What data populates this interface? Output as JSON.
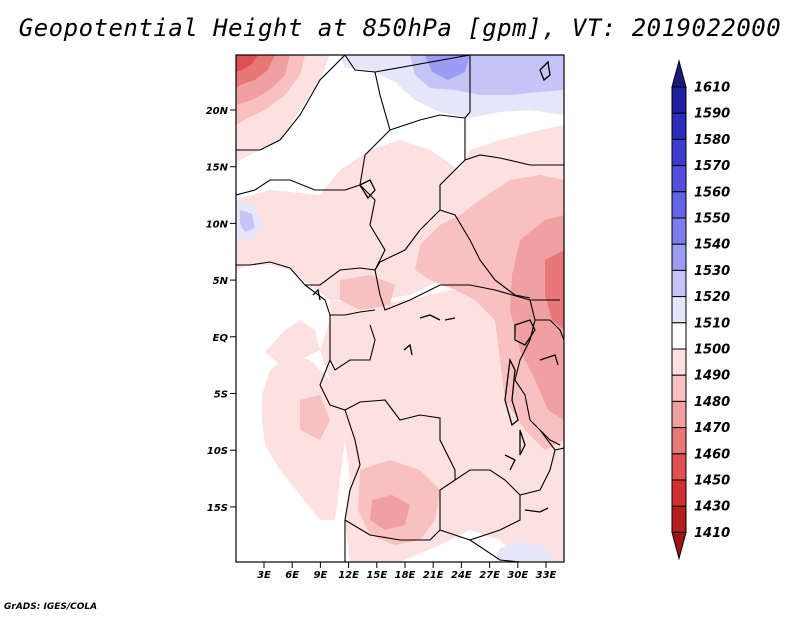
{
  "title": "Geopotential Height at 850hPa [gpm], VT: 2019022000",
  "credit": "GrADS: IGES/COLA",
  "map": {
    "lat_labels": [
      "20N",
      "15N",
      "10N",
      "5N",
      "EQ",
      "5S",
      "10S",
      "15S"
    ],
    "lon_labels": [
      "3E",
      "6E",
      "9E",
      "12E",
      "15E",
      "18E",
      "21E",
      "24E",
      "27E",
      "30E",
      "33E"
    ]
  },
  "colorbar": {
    "levels": [
      "1610",
      "1590",
      "1580",
      "1570",
      "1560",
      "1550",
      "1540",
      "1530",
      "1520",
      "1510",
      "1500",
      "1490",
      "1480",
      "1470",
      "1460",
      "1450",
      "1430",
      "1410"
    ],
    "colors": [
      "#1a1a7a",
      "#2020a0",
      "#2c2cbe",
      "#3c3cd0",
      "#5050dc",
      "#6464e6",
      "#7c7cee",
      "#9c9cf2",
      "#c4c4f6",
      "#e6e6fa",
      "#ffffff",
      "#fde0e0",
      "#f8c0c0",
      "#f0a0a0",
      "#e87878",
      "#e05050",
      "#d03030",
      "#b41e1e",
      "#a01414"
    ]
  },
  "shading_colors": {
    "white": "#ffffff",
    "pale_pink": "#fde0e0",
    "light_pink": "#f8c0c0",
    "mid_pink": "#f0a0a0",
    "deep_pink": "#e87878",
    "red": "#e05050",
    "pale_blue": "#e6e6fa",
    "light_blue": "#c4c4f6",
    "mid_blue": "#9c9cf2"
  }
}
